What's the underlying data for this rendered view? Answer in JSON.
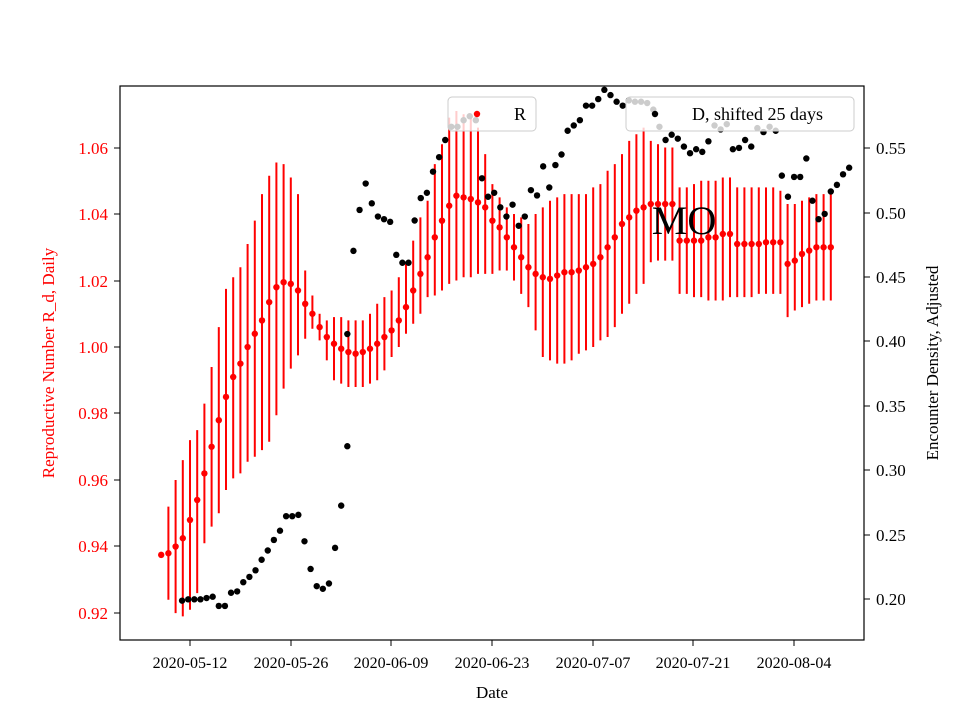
{
  "chart_data": {
    "type": "scatter",
    "title": "",
    "annotation": "MO",
    "xlabel": "Date",
    "ylabel_left": "Reproductive Number R_d, Daily",
    "ylabel_right": "Encounter Density, Adjusted",
    "x_tick_labels": [
      "2020-05-12",
      "2020-05-26",
      "2020-06-09",
      "2020-06-23",
      "2020-07-07",
      "2020-07-21",
      "2020-08-04"
    ],
    "y_left_tick_labels": [
      "0.92",
      "0.94",
      "0.96",
      "0.98",
      "1.00",
      "1.02",
      "1.04",
      "1.06"
    ],
    "y_right_tick_labels": [
      "0.20",
      "0.25",
      "0.30",
      "0.35",
      "0.40",
      "0.45",
      "0.50",
      "0.55"
    ],
    "ylim_left": [
      0.9119,
      1.0785
    ],
    "ylim_right": [
      0.1692,
      0.5889
    ],
    "x_start": "2020-05-08",
    "legend_R": "R",
    "legend_D": "D, shifted 25 days",
    "legend_placement": "top-center and top-right",
    "grid": false,
    "colors": {
      "R": "#ff0000",
      "D": "#000000",
      "left_axis_text": "#ff0000"
    },
    "series_R": {
      "name": "R",
      "values": [
        0.9375,
        0.938,
        0.94,
        0.9425,
        0.948,
        0.954,
        0.962,
        0.97,
        0.978,
        0.985,
        0.991,
        0.995,
        1.0,
        1.004,
        1.008,
        1.0135,
        1.018,
        1.0195,
        1.019,
        1.017,
        1.013,
        1.01,
        1.006,
        1.003,
        1.001,
        0.9995,
        0.9985,
        0.998,
        0.9985,
        0.9995,
        1.001,
        1.003,
        1.005,
        1.008,
        1.012,
        1.017,
        1.022,
        1.027,
        1.033,
        1.038,
        1.0425,
        1.0455,
        1.045,
        1.0445,
        1.0435,
        1.042,
        1.038,
        1.036,
        1.033,
        1.03,
        1.027,
        1.024,
        1.022,
        1.021,
        1.0205,
        1.0215,
        1.0225,
        1.0225,
        1.023,
        1.024,
        1.025,
        1.027,
        1.03,
        1.033,
        1.037,
        1.039,
        1.041,
        1.042,
        1.043,
        1.043,
        1.043,
        1.043,
        1.032,
        1.032,
        1.032,
        1.032,
        1.033,
        1.033,
        1.034,
        1.034,
        1.031,
        1.031,
        1.031,
        1.031,
        1.0315,
        1.0315,
        1.0315,
        1.025,
        1.026,
        1.028,
        1.029,
        1.03,
        1.03,
        1.03
      ],
      "err_low": [
        0.9375,
        0.924,
        0.92,
        0.919,
        0.921,
        0.926,
        0.941,
        0.946,
        0.95,
        0.957,
        0.9605,
        0.962,
        0.9655,
        0.967,
        0.969,
        0.9715,
        0.9795,
        0.9875,
        0.9935,
        0.9975,
        1.0025,
        1.0055,
        1.002,
        0.996,
        0.99,
        0.989,
        0.988,
        0.988,
        0.988,
        0.989,
        0.99,
        0.993,
        0.997,
        1.0,
        1.004,
        1.007,
        1.01,
        1.015,
        1.0155,
        1.017,
        1.019,
        1.02,
        1.021,
        1.021,
        1.022,
        1.022,
        1.022,
        1.023,
        1.023,
        1.02,
        1.016,
        1.012,
        1.005,
        0.997,
        0.996,
        0.995,
        0.995,
        0.996,
        0.998,
        0.999,
        1.0,
        1.002,
        1.003,
        1.006,
        1.01,
        1.013,
        1.016,
        1.019,
        1.0255,
        1.026,
        1.026,
        1.026,
        1.016,
        1.016,
        1.015,
        1.015,
        1.014,
        1.014,
        1.014,
        1.015,
        1.015,
        1.015,
        1.015,
        1.016,
        1.016,
        1.016,
        1.016,
        1.009,
        1.011,
        1.012,
        1.013,
        1.014,
        1.014,
        1.014
      ],
      "err_high": [
        0.9375,
        0.952,
        0.96,
        0.966,
        0.972,
        0.975,
        0.983,
        0.994,
        1.006,
        1.0175,
        1.021,
        1.024,
        1.031,
        1.038,
        1.046,
        1.0515,
        1.0555,
        1.055,
        1.051,
        1.046,
        1.023,
        1.0155,
        1.01,
        1.008,
        1.009,
        1.009,
        1.008,
        1.008,
        1.008,
        1.01,
        1.013,
        1.015,
        1.017,
        1.021,
        1.025,
        1.032,
        1.039,
        1.044,
        1.055,
        1.061,
        1.069,
        1.071,
        1.07,
        1.0695,
        1.066,
        1.058,
        1.049,
        1.045,
        1.042,
        1.04,
        1.039,
        1.037,
        1.04,
        1.042,
        1.044,
        1.045,
        1.046,
        1.046,
        1.046,
        1.046,
        1.048,
        1.049,
        1.053,
        1.055,
        1.058,
        1.062,
        1.064,
        1.066,
        1.062,
        1.061,
        1.06,
        1.06,
        1.048,
        1.048,
        1.049,
        1.05,
        1.05,
        1.05,
        1.051,
        1.051,
        1.048,
        1.048,
        1.048,
        1.048,
        1.048,
        1.048,
        1.047,
        1.043,
        1.043,
        1.044,
        1.045,
        1.046,
        1.046,
        1.046
      ]
    },
    "series_D": {
      "name": "D, shifted 25 days",
      "values": [
        0.199,
        0.2,
        0.2,
        0.2,
        0.201,
        0.202,
        0.195,
        0.195,
        0.205,
        0.206,
        0.213,
        0.217,
        0.222,
        0.23,
        0.237,
        0.245,
        0.252,
        0.263,
        0.263,
        0.264,
        0.244,
        0.223,
        0.21,
        0.208,
        0.212,
        0.239,
        0.271,
        0.316,
        0.401,
        0.464,
        0.495,
        0.515,
        0.5,
        0.49,
        0.488,
        0.486,
        0.461,
        0.455,
        0.455,
        0.487,
        0.504,
        0.508,
        0.524,
        0.535,
        0.548,
        0.558,
        0.558,
        0.563,
        0.566,
        0.563,
        0.519,
        0.505,
        0.508,
        0.497,
        0.49,
        0.499,
        0.483,
        0.49,
        0.51,
        0.506,
        0.528,
        0.512,
        0.529,
        0.537,
        0.555,
        0.559,
        0.563,
        0.574,
        0.574,
        0.579,
        0.586,
        0.582,
        0.577,
        0.574,
        0.578,
        0.577,
        0.577,
        0.576,
        0.571,
        0.558,
        0.548,
        0.552,
        0.549,
        0.543,
        0.538,
        0.541,
        0.539,
        0.547,
        0.559,
        0.556,
        0.56,
        0.541,
        0.542,
        0.548,
        0.543,
        0.557,
        0.554,
        0.558,
        0.555,
        0.521,
        0.505,
        0.52,
        0.52,
        0.534,
        0.502,
        0.488,
        0.492,
        0.509,
        0.514,
        0.522,
        0.527
      ],
      "x_offset": [
        2,
        3,
        4,
        5,
        6,
        7,
        8,
        9,
        10,
        11,
        12,
        13,
        14,
        15,
        16,
        17,
        18,
        19,
        20,
        21,
        22,
        23,
        24,
        25,
        26,
        27,
        28,
        29,
        29,
        30,
        31,
        32,
        33,
        34,
        35,
        36,
        37,
        38,
        39,
        40,
        41,
        42,
        43,
        44,
        45,
        46,
        47,
        48,
        49,
        50,
        51,
        52,
        53,
        54,
        55,
        56,
        57,
        58,
        59,
        60,
        61,
        62,
        63,
        64,
        65,
        66,
        67,
        68,
        69,
        70,
        71,
        72,
        73,
        74,
        75,
        76,
        77,
        78,
        79,
        80,
        81,
        82,
        83,
        84,
        85,
        86,
        87,
        88,
        89,
        90,
        91,
        92,
        93,
        94,
        95,
        96,
        97,
        98,
        99,
        100,
        101,
        102,
        103,
        104,
        105,
        106,
        107,
        108,
        109,
        110,
        111
      ]
    }
  }
}
